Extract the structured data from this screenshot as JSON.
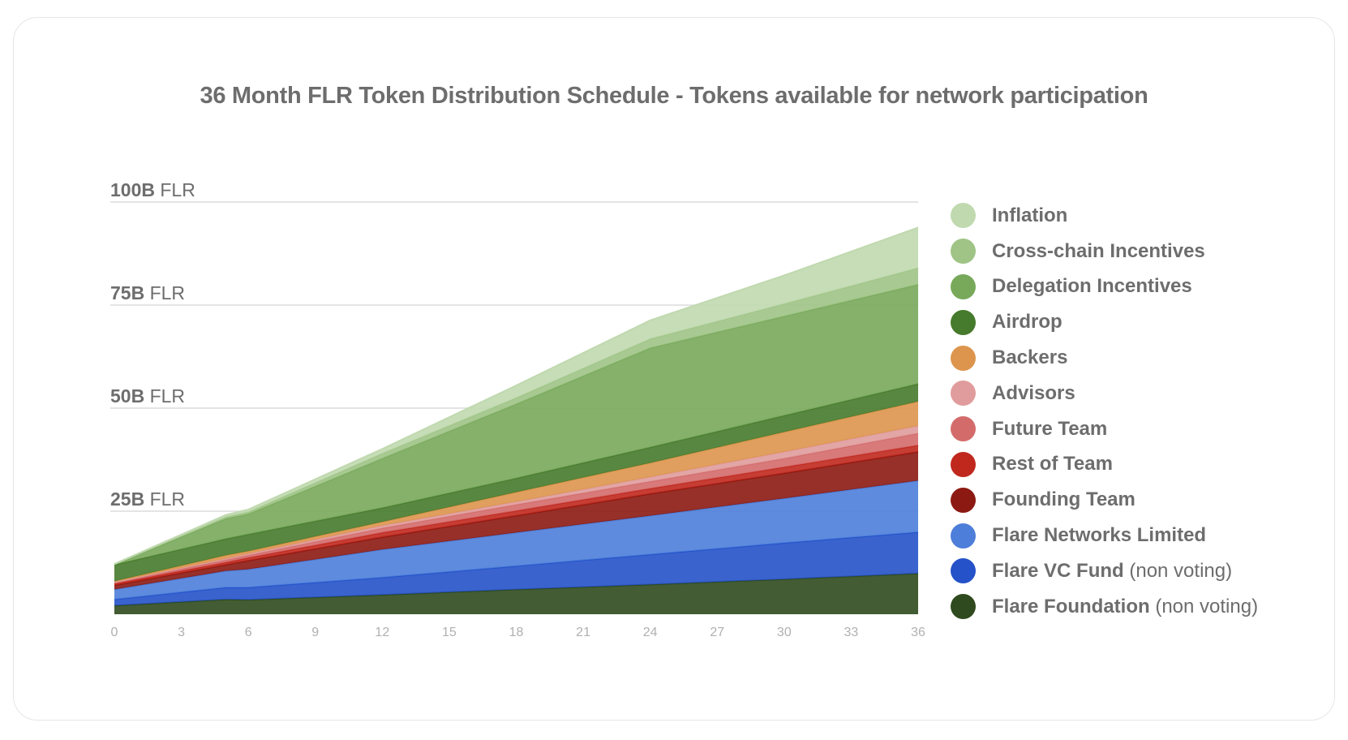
{
  "chart_data": {
    "type": "area",
    "stacked": true,
    "title": "36 Month FLR Token Distribution Schedule - Tokens available for network participation",
    "xlabel": "",
    "ylabel": "",
    "unit": "B FLR",
    "x": [
      0,
      5,
      6,
      12,
      18,
      24,
      30,
      36
    ],
    "xlim": [
      0,
      36
    ],
    "xticks": [
      "0",
      "3",
      "6",
      "9",
      "12",
      "15",
      "18",
      "21",
      "24",
      "27",
      "30",
      "33",
      "36"
    ],
    "ylim": [
      0,
      100
    ],
    "yticks": [
      {
        "value": 25,
        "num": "25B",
        "unit": "FLR"
      },
      {
        "value": 50,
        "num": "50B",
        "unit": "FLR"
      },
      {
        "value": 75,
        "num": "75B",
        "unit": "FLR"
      },
      {
        "value": 100,
        "num": "100B",
        "unit": "FLR"
      }
    ],
    "grid": true,
    "legend_position": "right",
    "series": [
      {
        "name": "Flare Foundation",
        "note": "(non voting)",
        "color": "#2f4a1e",
        "values": [
          2.1,
          3.6,
          3.5,
          4.7,
          6.0,
          7.2,
          8.5,
          9.9
        ]
      },
      {
        "name": "Flare VC Fund",
        "note": "(non voting)",
        "color": "#2552c9",
        "values": [
          1.5,
          2.9,
          3.0,
          4.2,
          5.7,
          7.3,
          8.8,
          10.0
        ]
      },
      {
        "name": "Flare Networks Limited",
        "color": "#4d7ed9",
        "values": [
          2.4,
          4.0,
          4.4,
          6.8,
          8.1,
          9.4,
          10.8,
          12.5
        ]
      },
      {
        "name": "Founding Team",
        "color": "#8c1a12",
        "values": [
          1.0,
          1.5,
          2.1,
          3.0,
          4.1,
          5.3,
          6.1,
          7.0
        ]
      },
      {
        "name": "Rest of Team",
        "color": "#c0281e",
        "values": [
          0.4,
          0.6,
          0.7,
          1.1,
          1.2,
          1.3,
          1.5,
          1.6
        ]
      },
      {
        "name": "Future Team",
        "color": "#d46b6b",
        "values": [
          0.3,
          0.6,
          0.6,
          1.1,
          1.5,
          1.7,
          2.1,
          2.9
        ]
      },
      {
        "name": "Advisors",
        "color": "#e09c9c",
        "values": [
          0.1,
          0.3,
          0.4,
          0.6,
          0.7,
          1.1,
          1.6,
          1.8
        ]
      },
      {
        "name": "Backers",
        "color": "#dd954d",
        "values": [
          0.2,
          0.8,
          0.6,
          0.9,
          2.3,
          3.4,
          4.8,
          5.9
        ]
      },
      {
        "name": "Airdrop",
        "color": "#467a2c",
        "values": [
          4.0,
          4.0,
          4.1,
          3.4,
          3.4,
          3.8,
          4.0,
          4.3
        ]
      },
      {
        "name": "Delegation Incentives",
        "color": "#78a95b",
        "values": [
          0.1,
          4.9,
          4.9,
          12.0,
          18.0,
          24.1,
          24.1,
          24.1
        ]
      },
      {
        "name": "Cross-chain Incentives",
        "color": "#9fc486",
        "values": [
          0.05,
          0.4,
          0.5,
          1.2,
          1.5,
          2.2,
          3.0,
          4.0
        ]
      },
      {
        "name": "Inflation",
        "color": "#c0d9af",
        "values": [
          0.05,
          0.5,
          0.6,
          1.1,
          3.0,
          4.5,
          6.9,
          9.8
        ]
      }
    ]
  }
}
